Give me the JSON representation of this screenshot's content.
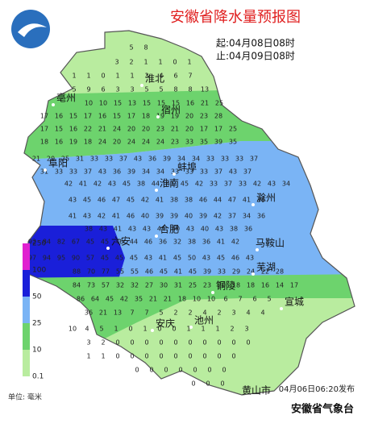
{
  "header": {
    "title": "安徽省降水量预报图",
    "start": "起:04月08日08时",
    "end": "止:04月09日08时"
  },
  "cities": [
    "淮北",
    "宿州",
    "亳州",
    "阜阳",
    "蚌埠",
    "淮南",
    "滁州",
    "六安",
    "合肥",
    "马鞍山",
    "芜湖",
    "铜陵",
    "宣城",
    "安庆",
    "池州",
    "黄山市"
  ],
  "legend": {
    "levels": [
      "250",
      "100",
      "50",
      "25",
      "10",
      "0.1"
    ],
    "unit": "单位: 毫米"
  },
  "grid": [
    [
      5,
      8
    ],
    [
      3,
      2,
      1,
      1,
      0,
      1
    ],
    [
      1,
      1,
      0,
      1,
      1,
      3,
      4,
      6,
      7
    ],
    [
      5,
      9,
      6,
      3,
      3,
      5,
      5,
      8,
      8,
      13
    ],
    [
      10,
      10,
      15,
      13,
      15,
      15,
      15,
      16,
      21,
      25
    ],
    [
      17,
      16,
      15,
      17,
      16,
      15,
      17,
      18,
      19,
      19,
      20,
      23,
      28
    ],
    [
      17,
      15,
      16,
      22,
      21,
      24,
      20,
      20,
      23,
      21,
      20,
      17,
      17,
      25
    ],
    [
      18,
      16,
      19,
      18,
      24,
      20,
      24,
      24,
      24,
      23,
      33,
      35,
      39,
      35
    ],
    [
      21,
      20,
      25,
      31,
      33,
      33,
      37,
      43,
      36,
      39,
      34,
      34,
      33,
      33,
      33,
      37
    ],
    [
      31,
      33,
      33,
      37,
      43,
      36,
      39,
      34,
      34,
      33,
      33,
      33,
      37,
      43,
      37
    ],
    [
      42,
      41,
      42,
      43,
      45,
      38,
      44,
      41,
      45,
      42,
      33,
      37,
      33,
      42,
      43,
      34
    ],
    [
      43,
      45,
      46,
      47,
      45,
      42,
      41,
      38,
      38,
      46,
      44,
      47,
      41,
      36
    ],
    [
      41,
      43,
      42,
      41,
      46,
      40,
      39,
      39,
      40,
      39,
      42,
      37,
      34,
      36
    ],
    [
      38,
      43,
      41,
      43,
      43,
      44,
      40,
      43,
      40,
      43,
      38,
      36
    ],
    [
      92,
      84,
      82,
      67,
      45,
      45,
      46,
      44,
      46,
      36,
      32,
      38,
      36,
      41,
      42
    ],
    [
      97,
      94,
      95,
      90,
      57,
      45,
      45,
      45,
      43,
      41,
      45,
      50,
      43,
      45,
      46,
      43
    ],
    [
      88,
      70,
      77,
      55,
      55,
      46,
      45,
      41,
      45,
      39,
      33,
      29,
      24,
      22,
      28
    ],
    [
      84,
      73,
      57,
      32,
      32,
      27,
      30,
      31,
      25,
      23,
      20,
      18,
      18,
      16,
      14,
      17
    ],
    [
      86,
      64,
      45,
      42,
      35,
      21,
      21,
      18,
      10,
      10,
      6,
      7,
      6,
      5
    ],
    [
      36,
      21,
      13,
      7,
      7,
      5,
      2,
      2,
      4,
      2,
      3,
      4,
      4
    ],
    [
      10,
      4,
      5,
      1,
      0,
      1,
      0,
      0,
      1,
      1,
      1,
      2,
      3
    ],
    [
      3,
      2,
      0,
      0,
      0,
      0,
      0,
      0,
      0,
      0,
      0,
      0
    ],
    [
      1,
      1,
      0,
      0,
      0,
      0,
      0,
      0,
      0,
      0,
      0
    ],
    [
      0,
      0,
      0,
      0,
      0,
      0,
      0
    ],
    [
      0,
      0,
      0
    ]
  ],
  "footer": {
    "issued": "04月06日06:20发布",
    "brand": "安徽省气象台"
  }
}
